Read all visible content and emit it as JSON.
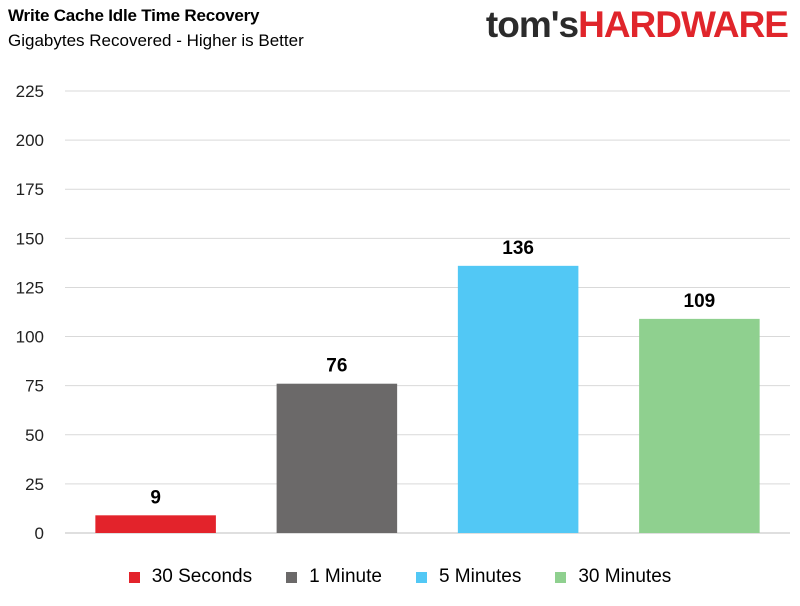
{
  "header": {
    "title": "Write Cache Idle Time Recovery",
    "subtitle": "Gigabytes Recovered - Higher is Better",
    "logo_part1": "tom's",
    "logo_part2": "HARDWARE"
  },
  "chart_data": {
    "type": "bar",
    "title": "Write Cache Idle Time Recovery",
    "subtitle": "Gigabytes Recovered - Higher is Better",
    "xlabel": "",
    "ylabel": "",
    "ylim": [
      0,
      225
    ],
    "yticks": [
      0,
      25,
      50,
      75,
      100,
      125,
      150,
      175,
      200,
      225
    ],
    "grid": true,
    "legend_position": "bottom",
    "series": [
      {
        "name": "30 Seconds",
        "value": 9,
        "color": "#e3232b"
      },
      {
        "name": "1 Minute",
        "value": 76,
        "color": "#6b6969"
      },
      {
        "name": "5 Minutes",
        "value": 136,
        "color": "#52c8f5"
      },
      {
        "name": "30 Minutes",
        "value": 109,
        "color": "#8fd08f"
      }
    ]
  }
}
